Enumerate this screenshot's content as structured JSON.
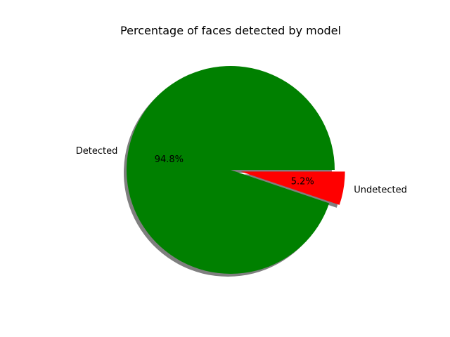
{
  "chart_data": {
    "type": "pie",
    "title": "Percentage of faces detected by model",
    "slices": [
      {
        "label": "Detected",
        "value": 94.8,
        "pct_label": "94.8%",
        "color": "#008000",
        "explode": 0
      },
      {
        "label": "Undetected",
        "value": 5.2,
        "pct_label": "5.2%",
        "color": "#ff0000",
        "explode": 0.1
      }
    ],
    "start_angle_deg": 0,
    "direction": "counterclockwise",
    "shadow": true,
    "legend": "none"
  }
}
